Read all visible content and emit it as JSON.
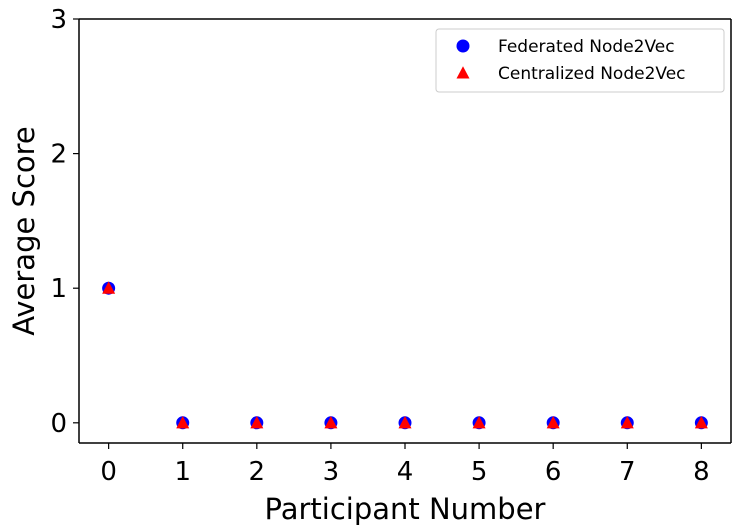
{
  "chart_data": {
    "type": "scatter",
    "title": "",
    "xlabel": "Participant Number",
    "ylabel": "Average Score",
    "x": [
      0,
      1,
      2,
      3,
      4,
      5,
      6,
      7,
      8
    ],
    "xticks": [
      "0",
      "1",
      "2",
      "3",
      "4",
      "5",
      "6",
      "7",
      "8"
    ],
    "yticks": [
      "0",
      "1",
      "2",
      "3"
    ],
    "xlim": [
      -0.4,
      8.4
    ],
    "ylim": [
      -0.15,
      3
    ],
    "grid": false,
    "legend_position": "top-right",
    "series": [
      {
        "name": "Federated Node2Vec",
        "marker": "circle",
        "color": "#0000ff",
        "values": [
          1,
          0,
          0,
          0,
          0,
          0,
          0,
          0,
          0
        ]
      },
      {
        "name": "Centralized Node2Vec",
        "marker": "triangle",
        "color": "#ff0000",
        "values": [
          1,
          0,
          0,
          0,
          0,
          0,
          0,
          0,
          0
        ]
      }
    ]
  }
}
